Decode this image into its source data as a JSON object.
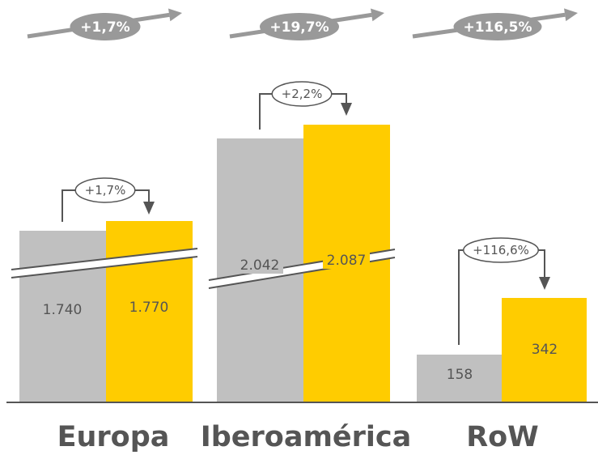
{
  "colors": {
    "prev_bar": "#c0c0c0",
    "curr_bar": "#ffcc00",
    "text": "#555555",
    "trend_bubble": "#999999",
    "axis": "#555555"
  },
  "chart_data": {
    "type": "bar",
    "categories": [
      "Europa",
      "Iberoamérica",
      "RoW"
    ],
    "series": [
      {
        "values": [
          1740,
          2042,
          158
        ]
      },
      {
        "values": [
          1770,
          2087,
          342
        ]
      }
    ],
    "value_labels": [
      [
        "1.740",
        "2.042",
        "158"
      ],
      [
        "1.770",
        "2.087",
        "342"
      ]
    ],
    "change_labels": [
      "+1,7%",
      "+2,2%",
      "+116,6%"
    ],
    "trend_labels": [
      "+1,7%",
      "+19,7%",
      "+116,5%"
    ],
    "broken_axis_categories": [
      "Europa",
      "Iberoamérica"
    ],
    "legend": "none",
    "grid": false
  }
}
